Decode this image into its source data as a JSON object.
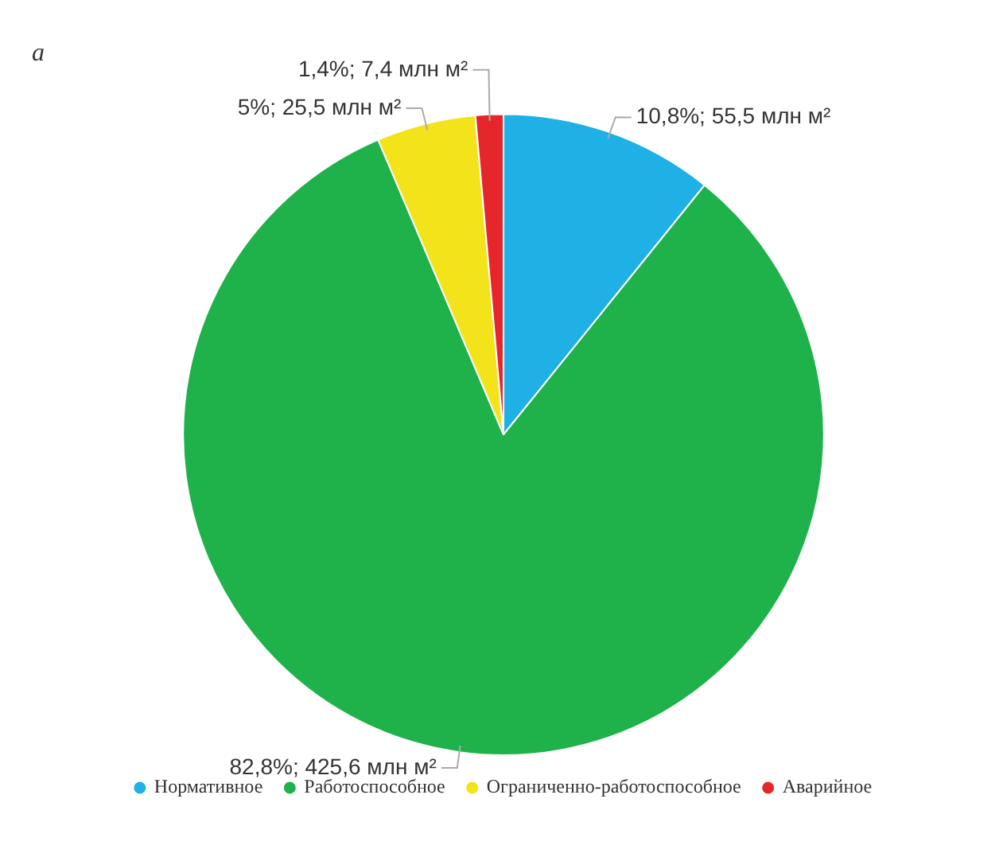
{
  "chart_data": {
    "type": "pie",
    "title": "а",
    "categories": [
      "Нормативное",
      "Работоспособное",
      "Ограниченно-работоспособное",
      "Аварийное"
    ],
    "values": [
      10.8,
      82.8,
      5,
      1.4
    ],
    "colors": [
      "#1fb0e6",
      "#1fb24a",
      "#f2e31b",
      "#e5262b"
    ],
    "value_labels": [
      "10,8%; 55,5 млн м²",
      "82,8%; 425,6 млн м²",
      "5%; 25,5 млн м²",
      "1,4%; 7,4 млн м²"
    ],
    "legend": "bottom"
  }
}
